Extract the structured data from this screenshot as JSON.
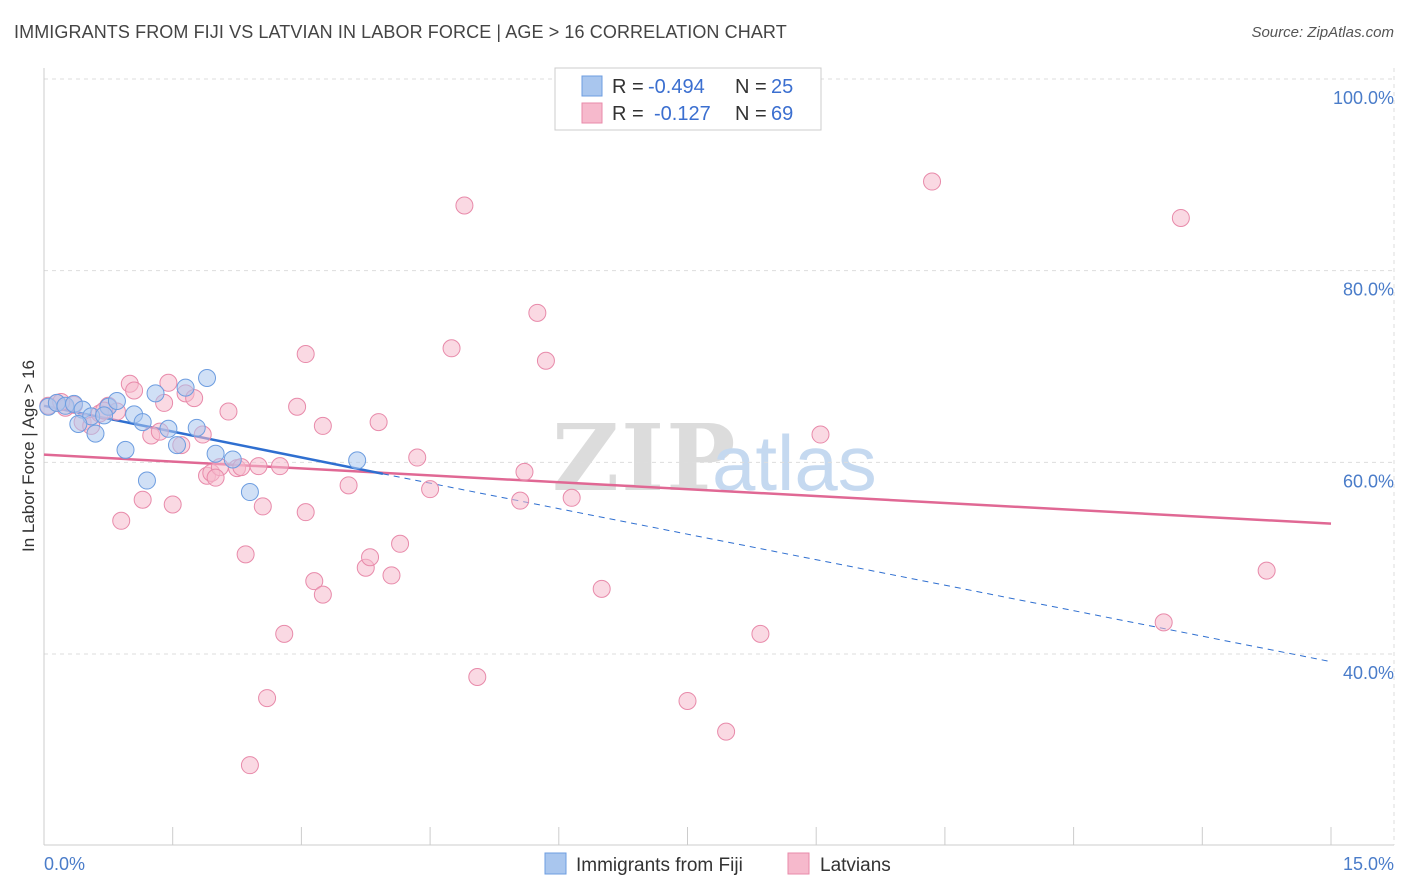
{
  "header": {
    "title": "IMMIGRANTS FROM FIJI VS LATVIAN IN LABOR FORCE | AGE > 16 CORRELATION CHART",
    "source": "Source: ZipAtlas.com"
  },
  "watermark": {
    "part1": "ZIP",
    "part2": "atlas"
  },
  "legend": {
    "rows": [
      {
        "r_label": "R =",
        "r_value": "-0.494",
        "n_label": "N =",
        "n_value": "25",
        "color": "#a9c6ee"
      },
      {
        "r_label": "R =",
        "r_value": "-0.127",
        "n_label": "N =",
        "n_value": "69",
        "color": "#f6b9cc"
      }
    ]
  },
  "colors": {
    "fiji_fill": "#a9c6ee",
    "fiji_stroke": "#6d9de0",
    "fiji_line": "#2f6fd0",
    "latvian_fill": "#f6b9cc",
    "latvian_stroke": "#e88aaa",
    "latvian_line": "#e06894",
    "axis_text": "#4a7cc9",
    "grid": "#dddddd"
  },
  "chart_data": {
    "type": "scatter",
    "title": "IMMIGRANTS FROM FIJI VS LATVIAN IN LABOR FORCE | AGE > 16 CORRELATION CHART",
    "xlabel": "",
    "ylabel": "In Labor Force | Age > 16",
    "xlim": [
      0,
      15
    ],
    "ylim": [
      20,
      103
    ],
    "x_tick_labels": [
      "0.0%",
      "15.0%"
    ],
    "y_ticks": [
      100,
      80,
      60,
      40
    ],
    "y_tick_labels": [
      "100.0%",
      "80.0%",
      "60.0%",
      "40.0%"
    ],
    "series": [
      {
        "name": "Immigrants from Fiji",
        "r": -0.494,
        "n": 25,
        "points": [
          [
            0.05,
            65.8
          ],
          [
            0.15,
            66.2
          ],
          [
            0.25,
            65.9
          ],
          [
            0.35,
            66.1
          ],
          [
            0.45,
            65.5
          ],
          [
            0.55,
            64.8
          ],
          [
            0.6,
            63.0
          ],
          [
            0.75,
            65.8
          ],
          [
            0.85,
            66.4
          ],
          [
            0.95,
            61.3
          ],
          [
            1.05,
            65.0
          ],
          [
            1.15,
            64.2
          ],
          [
            1.2,
            58.1
          ],
          [
            1.3,
            67.2
          ],
          [
            1.45,
            63.5
          ],
          [
            1.55,
            61.8
          ],
          [
            1.65,
            67.8
          ],
          [
            1.78,
            63.6
          ],
          [
            1.9,
            68.8
          ],
          [
            2.0,
            60.9
          ],
          [
            2.2,
            60.3
          ],
          [
            2.4,
            56.9
          ],
          [
            3.65,
            60.2
          ],
          [
            0.4,
            64.0
          ],
          [
            0.7,
            64.9
          ]
        ],
        "trend": {
          "x": [
            0.0,
            3.95
          ],
          "y": [
            65.9,
            58.8
          ]
        },
        "trend_extension": {
          "x": [
            3.95,
            15.0
          ],
          "y": [
            58.8,
            39.2
          ]
        }
      },
      {
        "name": "Latvians",
        "r": -0.127,
        "n": 69,
        "points": [
          [
            0.05,
            65.9
          ],
          [
            0.15,
            66.2
          ],
          [
            0.25,
            65.7
          ],
          [
            0.35,
            66.0
          ],
          [
            0.45,
            64.2
          ],
          [
            0.55,
            63.8
          ],
          [
            0.65,
            65.1
          ],
          [
            0.75,
            65.9
          ],
          [
            0.85,
            65.3
          ],
          [
            0.9,
            53.9
          ],
          [
            1.0,
            68.2
          ],
          [
            1.05,
            67.5
          ],
          [
            1.15,
            56.1
          ],
          [
            1.25,
            62.8
          ],
          [
            1.35,
            63.2
          ],
          [
            1.45,
            68.3
          ],
          [
            1.5,
            55.6
          ],
          [
            1.6,
            61.8
          ],
          [
            1.65,
            67.2
          ],
          [
            1.75,
            66.7
          ],
          [
            1.85,
            62.9
          ],
          [
            1.9,
            58.6
          ],
          [
            1.95,
            58.9
          ],
          [
            2.05,
            59.5
          ],
          [
            2.15,
            65.3
          ],
          [
            2.25,
            59.4
          ],
          [
            2.3,
            59.5
          ],
          [
            2.35,
            50.4
          ],
          [
            2.5,
            59.6
          ],
          [
            2.55,
            55.4
          ],
          [
            2.6,
            35.4
          ],
          [
            2.4,
            28.4
          ],
          [
            2.75,
            59.6
          ],
          [
            2.8,
            42.1
          ],
          [
            2.95,
            65.8
          ],
          [
            3.05,
            71.3
          ],
          [
            3.05,
            54.8
          ],
          [
            3.15,
            47.6
          ],
          [
            3.25,
            46.2
          ],
          [
            3.25,
            63.8
          ],
          [
            3.55,
            57.6
          ],
          [
            3.75,
            49.0
          ],
          [
            3.8,
            50.1
          ],
          [
            3.9,
            64.2
          ],
          [
            4.05,
            48.2
          ],
          [
            4.15,
            51.5
          ],
          [
            4.35,
            60.5
          ],
          [
            4.5,
            57.2
          ],
          [
            4.75,
            71.9
          ],
          [
            4.9,
            86.8
          ],
          [
            5.05,
            37.6
          ],
          [
            5.55,
            56.0
          ],
          [
            5.6,
            59.0
          ],
          [
            5.75,
            75.6
          ],
          [
            5.85,
            70.6
          ],
          [
            6.15,
            56.3
          ],
          [
            6.5,
            46.8
          ],
          [
            7.5,
            35.1
          ],
          [
            7.95,
            31.9
          ],
          [
            8.35,
            42.1
          ],
          [
            9.05,
            62.9
          ],
          [
            10.35,
            89.3
          ],
          [
            13.05,
            43.3
          ],
          [
            13.25,
            85.5
          ],
          [
            14.25,
            48.7
          ],
          [
            0.2,
            66.3
          ],
          [
            0.7,
            65.4
          ],
          [
            1.4,
            66.2
          ],
          [
            2.0,
            58.4
          ]
        ],
        "trend": {
          "x": [
            0.0,
            15.0
          ],
          "y": [
            60.8,
            53.6
          ]
        }
      }
    ]
  },
  "bottom_legend": [
    {
      "label": "Immigrants from Fiji",
      "color": "#a9c6ee"
    },
    {
      "label": "Latvians",
      "color": "#f6b9cc"
    }
  ]
}
